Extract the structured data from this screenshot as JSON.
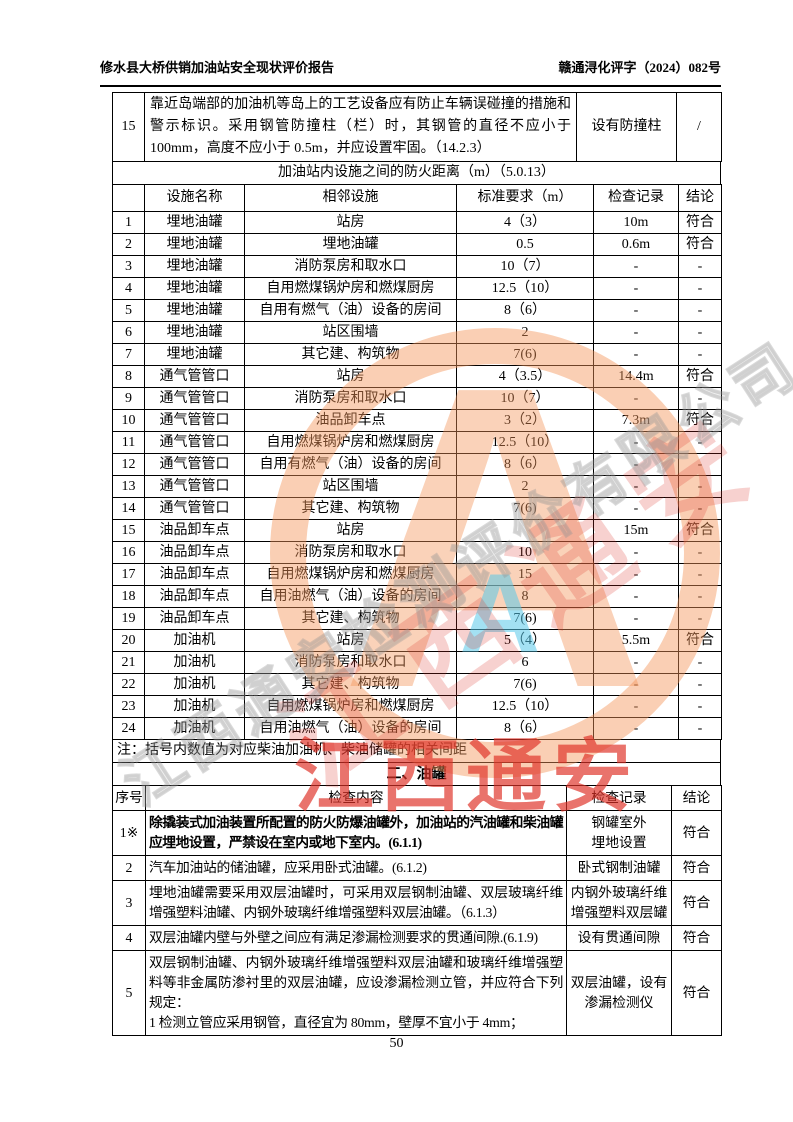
{
  "header": {
    "left_title": "修水县大桥供销加油站安全现状评价报告",
    "doc_number": "赣通浔化评字（2024）082号"
  },
  "row15": {
    "num": "15",
    "content": "靠近岛端部的加油机等岛上的工艺设备应有防止车辆误碰撞的措施和警示标识。采用钢管防撞柱（栏）时，其钢管的直径不应小于 100mm，高度不应小于 0.5m，并应设置牢固。（14.2.3）",
    "record": "设有防撞柱",
    "conclusion": "/"
  },
  "distance_section": {
    "title": "加油站内设施之间的防火距离（m）（5.0.13）",
    "headers": [
      "",
      "设施名称",
      "相邻设施",
      "标准要求（m）",
      "检查记录",
      "结论"
    ],
    "rows": [
      {
        "num": "1",
        "facility": "埋地油罐",
        "adjacent": "站房",
        "standard": "4（3）",
        "record": "10m",
        "conclusion": "符合"
      },
      {
        "num": "2",
        "facility": "埋地油罐",
        "adjacent": "埋地油罐",
        "standard": "0.5",
        "record": "0.6m",
        "conclusion": "符合"
      },
      {
        "num": "3",
        "facility": "埋地油罐",
        "adjacent": "消防泵房和取水口",
        "standard": "10（7）",
        "record": "-",
        "conclusion": "-"
      },
      {
        "num": "4",
        "facility": "埋地油罐",
        "adjacent": "自用燃煤锅炉房和燃煤厨房",
        "standard": "12.5（10）",
        "record": "-",
        "conclusion": "-"
      },
      {
        "num": "5",
        "facility": "埋地油罐",
        "adjacent": "自用有燃气（油）设备的房间",
        "standard": "8（6）",
        "record": "-",
        "conclusion": "-"
      },
      {
        "num": "6",
        "facility": "埋地油罐",
        "adjacent": "站区围墙",
        "standard": "2",
        "record": "-",
        "conclusion": "-"
      },
      {
        "num": "7",
        "facility": "埋地油罐",
        "adjacent": "其它建、构筑物",
        "standard": "7(6)",
        "record": "-",
        "conclusion": "-"
      },
      {
        "num": "8",
        "facility": "通气管管口",
        "adjacent": "站房",
        "standard": "4（3.5）",
        "record": "14.4m",
        "conclusion": "符合"
      },
      {
        "num": "9",
        "facility": "通气管管口",
        "adjacent": "消防泵房和取水口",
        "standard": "10（7）",
        "record": "-",
        "conclusion": "-"
      },
      {
        "num": "10",
        "facility": "通气管管口",
        "adjacent": "油品卸车点",
        "standard": "3（2）",
        "record": "7.3m",
        "conclusion": "符合"
      },
      {
        "num": "11",
        "facility": "通气管管口",
        "adjacent": "自用燃煤锅炉房和燃煤厨房",
        "standard": "12.5（10）",
        "record": "-",
        "conclusion": "-"
      },
      {
        "num": "12",
        "facility": "通气管管口",
        "adjacent": "自用有燃气（油）设备的房间",
        "standard": "8（6）",
        "record": "-",
        "conclusion": "-"
      },
      {
        "num": "13",
        "facility": "通气管管口",
        "adjacent": "站区围墙",
        "standard": "2",
        "record": "-",
        "conclusion": "-"
      },
      {
        "num": "14",
        "facility": "通气管管口",
        "adjacent": "其它建、构筑物",
        "standard": "7(6)",
        "record": "-",
        "conclusion": "-"
      },
      {
        "num": "15",
        "facility": "油品卸车点",
        "adjacent": "站房",
        "standard": "",
        "record": "15m",
        "conclusion": "符合"
      },
      {
        "num": "16",
        "facility": "油品卸车点",
        "adjacent": "消防泵房和取水口",
        "standard": "10",
        "record": "-",
        "conclusion": "-"
      },
      {
        "num": "17",
        "facility": "油品卸车点",
        "adjacent": "自用燃煤锅炉房和燃煤厨房",
        "standard": "15",
        "record": "-",
        "conclusion": "-"
      },
      {
        "num": "18",
        "facility": "油品卸车点",
        "adjacent": "自用油燃气（油）设备的房间",
        "standard": "8",
        "record": "-",
        "conclusion": "-"
      },
      {
        "num": "19",
        "facility": "油品卸车点",
        "adjacent": "其它建、构筑物",
        "standard": "7(6)",
        "record": "-",
        "conclusion": "-"
      },
      {
        "num": "20",
        "facility": "加油机",
        "adjacent": "站房",
        "standard": "5（4）",
        "record": "5.5m",
        "conclusion": "符合"
      },
      {
        "num": "21",
        "facility": "加油机",
        "adjacent": "消防泵房和取水口",
        "standard": "6",
        "record": "-",
        "conclusion": "-"
      },
      {
        "num": "22",
        "facility": "加油机",
        "adjacent": "其它建、构筑物",
        "standard": "7(6)",
        "record": "-",
        "conclusion": "-"
      },
      {
        "num": "23",
        "facility": "加油机",
        "adjacent": "自用燃煤锅炉房和燃煤厨房",
        "standard": "12.5（10）",
        "record": "-",
        "conclusion": "-"
      },
      {
        "num": "24",
        "facility": "加油机",
        "adjacent": "自用油燃气（油）设备的房间",
        "standard": "8（6）",
        "record": "-",
        "conclusion": "-"
      }
    ],
    "note": "注：括号内数值为对应柴油加油机、柴油储罐的相关间距"
  },
  "tank_section": {
    "title": "二、油罐",
    "headers": [
      "序号",
      "检查内容",
      "检查记录",
      "结论"
    ],
    "rows": [
      {
        "num": "1※",
        "bold": true,
        "content": "除撬装式加油装置所配置的防火防爆油罐外，加油站的汽油罐和柴油罐应埋地设置，严禁设在室内或地下室内。(6.1.1)",
        "record": "钢罐室外\n埋地设置",
        "conclusion": "符合"
      },
      {
        "num": "2",
        "content": "汽车加油站的储油罐，应采用卧式油罐。(6.1.2)",
        "record": "卧式钢制油罐",
        "conclusion": "符合"
      },
      {
        "num": "3",
        "content": "埋地油罐需要采用双层油罐时，可采用双层钢制油罐、双层玻璃纤维增强塑料油罐、内钢外玻璃纤维增强塑料双层油罐。（6.1.3）",
        "record": "内钢外玻璃纤维增强塑料双层罐",
        "conclusion": "符合"
      },
      {
        "num": "4",
        "content": "双层油罐内壁与外壁之间应有满足渗漏检测要求的贯通间隙.(6.1.9)",
        "record": "设有贯通间隙",
        "conclusion": "符合"
      },
      {
        "num": "5",
        "content": "双层钢制油罐、内钢外玻璃纤维增强塑料双层油罐和玻璃纤维增强塑料等非金属防渗衬里的双层油罐，应设渗漏检测立管，并应符合下列规定：\n1 检测立管应采用钢管，直径宜为 80mm，壁厚不宜小于 4mm；",
        "record": "双层油罐，设有渗漏检测仪",
        "conclusion": "符合"
      }
    ]
  },
  "footer": {
    "page_number": "50"
  },
  "watermark": {
    "seal_letter": "A",
    "center_letter": "A",
    "red_text": "江西通安",
    "diagonal_red_text": "江西通安",
    "diagonal_gray_text": "江西通安检测评价有限公司",
    "ring_color": "#F39458",
    "red_color": "#DE3026",
    "cyan_color": "#58C8E9"
  }
}
